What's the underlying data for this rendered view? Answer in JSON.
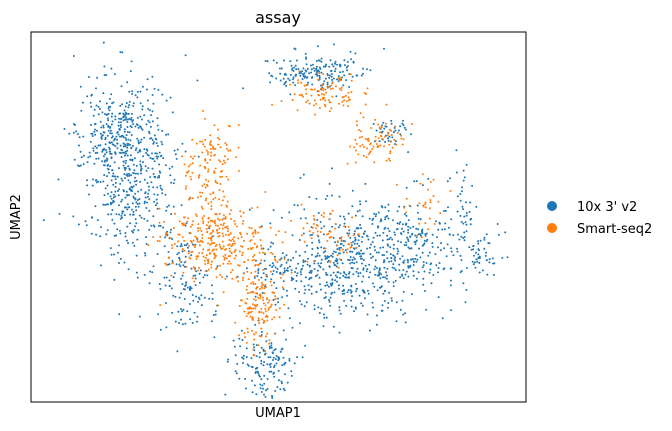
{
  "chart_data": {
    "type": "scatter",
    "title": "assay",
    "xlabel": "UMAP1",
    "ylabel": "UMAP2",
    "xticks": false,
    "yticks": false,
    "grid": false,
    "legend_placement": "right",
    "series": [
      {
        "name": "10x 3' v2",
        "color": "#1f77b4"
      },
      {
        "name": "Smart-seq2",
        "color": "#ff7f0e"
      }
    ],
    "clusters": [
      {
        "series": 0,
        "cx": 0.2,
        "cy": 0.37,
        "sx": 0.05,
        "sy": 0.12,
        "n": 520
      },
      {
        "series": 0,
        "cx": 0.17,
        "cy": 0.27,
        "sx": 0.04,
        "sy": 0.06,
        "n": 160
      },
      {
        "series": 0,
        "cx": 0.64,
        "cy": 0.62,
        "sx": 0.07,
        "sy": 0.08,
        "n": 480
      },
      {
        "series": 0,
        "cx": 0.78,
        "cy": 0.57,
        "sx": 0.06,
        "sy": 0.07,
        "n": 220
      },
      {
        "series": 0,
        "cx": 0.31,
        "cy": 0.68,
        "sx": 0.03,
        "sy": 0.07,
        "n": 130
      },
      {
        "series": 0,
        "cx": 0.47,
        "cy": 0.9,
        "sx": 0.03,
        "sy": 0.05,
        "n": 150
      },
      {
        "series": 0,
        "cx": 0.6,
        "cy": 0.11,
        "sx": 0.04,
        "sy": 0.03,
        "n": 130
      },
      {
        "series": 0,
        "cx": 0.53,
        "cy": 0.11,
        "sx": 0.03,
        "sy": 0.02,
        "n": 50
      },
      {
        "series": 0,
        "cx": 0.51,
        "cy": 0.65,
        "sx": 0.04,
        "sy": 0.03,
        "n": 80
      },
      {
        "series": 0,
        "cx": 0.91,
        "cy": 0.61,
        "sx": 0.02,
        "sy": 0.03,
        "n": 40
      },
      {
        "series": 0,
        "cx": 0.87,
        "cy": 0.47,
        "sx": 0.01,
        "sy": 0.05,
        "n": 30
      },
      {
        "series": 0,
        "cx": 0.73,
        "cy": 0.27,
        "sx": 0.02,
        "sy": 0.02,
        "n": 40
      },
      {
        "series": 1,
        "cx": 0.36,
        "cy": 0.56,
        "sx": 0.05,
        "sy": 0.05,
        "n": 260
      },
      {
        "series": 1,
        "cx": 0.36,
        "cy": 0.37,
        "sx": 0.025,
        "sy": 0.07,
        "n": 130
      },
      {
        "series": 1,
        "cx": 0.46,
        "cy": 0.75,
        "sx": 0.02,
        "sy": 0.05,
        "n": 140
      },
      {
        "series": 1,
        "cx": 0.59,
        "cy": 0.17,
        "sx": 0.035,
        "sy": 0.03,
        "n": 90
      },
      {
        "series": 1,
        "cx": 0.7,
        "cy": 0.29,
        "sx": 0.03,
        "sy": 0.03,
        "n": 80
      },
      {
        "series": 1,
        "cx": 0.44,
        "cy": 0.61,
        "sx": 0.05,
        "sy": 0.05,
        "n": 80
      },
      {
        "series": 1,
        "cx": 0.8,
        "cy": 0.45,
        "sx": 0.03,
        "sy": 0.04,
        "n": 30
      },
      {
        "series": 1,
        "cx": 0.58,
        "cy": 0.52,
        "sx": 0.02,
        "sy": 0.03,
        "n": 30
      },
      {
        "series": 1,
        "cx": 0.63,
        "cy": 0.56,
        "sx": 0.02,
        "sy": 0.03,
        "n": 30
      }
    ]
  }
}
